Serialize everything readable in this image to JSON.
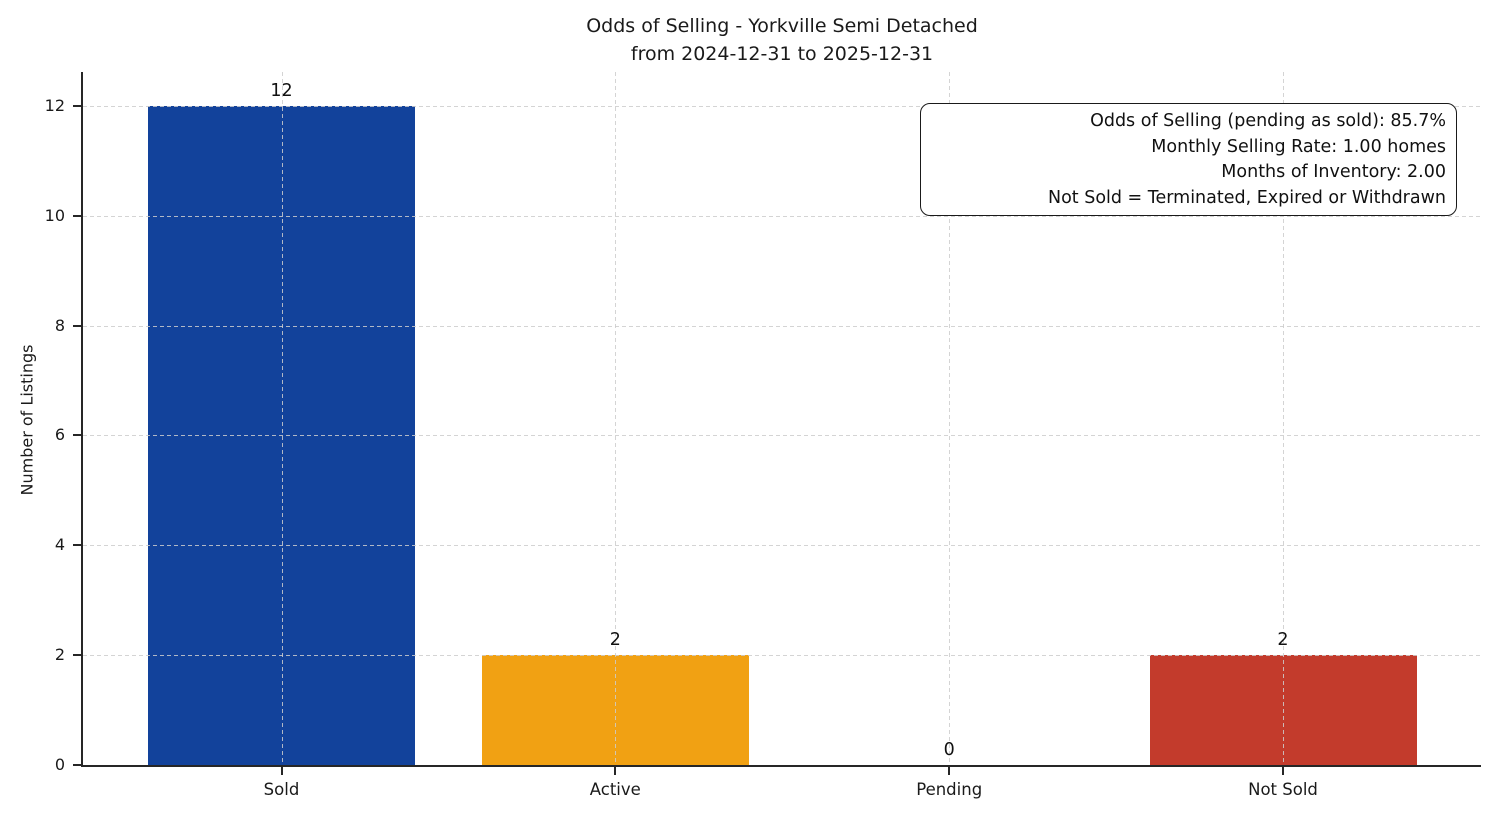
{
  "chart_data": {
    "type": "bar",
    "title": "Odds of Selling - Yorkville Semi Detached",
    "subtitle": "from 2024-12-31 to 2025-12-31",
    "ylabel": "Number of Listings",
    "xlabel": "",
    "categories": [
      "Sold",
      "Active",
      "Pending",
      "Not Sold"
    ],
    "values": [
      12,
      2,
      0,
      2
    ],
    "value_labels": [
      "12",
      "2",
      "0",
      "2"
    ],
    "bar_colors": [
      "#12429b",
      "#f1a113",
      null,
      "#c33b2c"
    ],
    "yticks": [
      0,
      2,
      4,
      6,
      8,
      10,
      12
    ],
    "ylim": [
      0,
      12.6
    ],
    "grid": {
      "style": "dashed",
      "axes": "both",
      "color": "#cdcdcd"
    },
    "axis_color": "#262626",
    "annotation": {
      "lines": [
        "Odds of Selling (pending as sold): 85.7%",
        "Monthly Selling Rate: 1.00 homes",
        "Months of Inventory: 2.00",
        "Not Sold = Terminated, Expired or Withdrawn"
      ]
    }
  }
}
